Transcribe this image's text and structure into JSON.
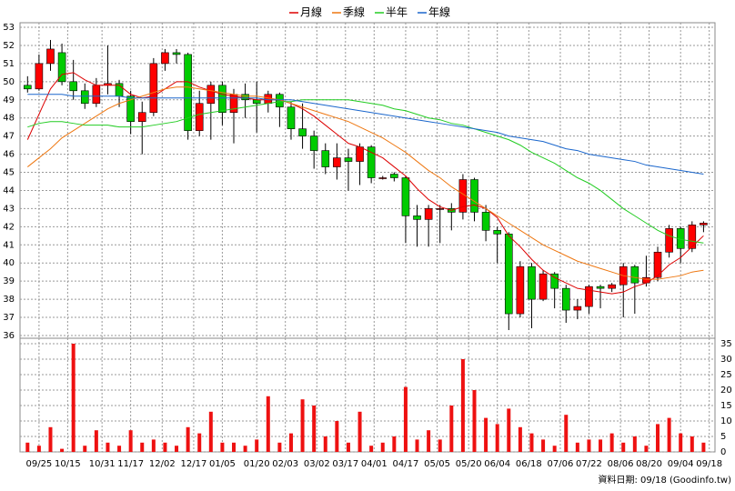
{
  "chart_data": [
    {
      "type": "candlestick",
      "x": [
        2,
        6,
        10,
        14,
        18,
        22,
        26,
        30,
        34,
        38,
        42,
        46,
        50,
        54,
        58,
        62,
        66,
        70,
        74,
        78,
        82,
        86,
        90,
        94,
        98,
        102,
        106,
        110,
        114,
        118,
        122,
        126,
        130,
        134,
        138,
        142,
        146,
        150,
        154,
        158,
        162,
        166,
        170,
        174,
        178,
        182,
        186,
        190,
        194,
        198,
        202,
        206,
        210,
        214,
        218,
        222,
        226,
        230,
        234,
        238
      ],
      "open": [
        49.8,
        49.6,
        51.0,
        51.6,
        50.0,
        49.5,
        48.8,
        49.8,
        49.9,
        49.2,
        47.8,
        48.3,
        51.0,
        51.6,
        51.5,
        47.3,
        48.8,
        49.8,
        48.3,
        49.3,
        49.0,
        48.8,
        49.3,
        48.6,
        47.4,
        47.0,
        46.2,
        45.3,
        45.8,
        45.6,
        46.4,
        44.7,
        44.9,
        44.7,
        42.6,
        42.4,
        43.0,
        43.0,
        42.8,
        44.6,
        42.8,
        41.8,
        41.6,
        37.2,
        39.8,
        38.0,
        39.4,
        38.6,
        37.4,
        37.6,
        38.7,
        38.6,
        38.8,
        39.8,
        38.9,
        39.2,
        40.6,
        41.9,
        40.8,
        42.1
      ],
      "high": [
        50.3,
        51.5,
        52.3,
        52.1,
        51.2,
        49.9,
        50.2,
        52.0,
        50.1,
        49.5,
        48.9,
        51.3,
        51.8,
        51.8,
        51.6,
        49.5,
        50.0,
        50.0,
        49.6,
        49.9,
        50.0,
        49.5,
        49.4,
        48.9,
        48.8,
        47.3,
        46.6,
        46.6,
        46.3,
        46.6,
        46.5,
        44.8,
        45.0,
        44.8,
        43.2,
        43.2,
        43.2,
        43.3,
        44.9,
        44.7,
        43.2,
        42.0,
        41.7,
        40.1,
        40.0,
        39.6,
        39.5,
        38.8,
        38.0,
        38.8,
        38.8,
        38.9,
        40.0,
        39.9,
        40.4,
        40.9,
        42.1,
        42.0,
        42.3,
        42.3
      ],
      "low": [
        49.4,
        49.5,
        50.6,
        49.8,
        49.0,
        48.5,
        48.6,
        49.3,
        48.6,
        47.1,
        46.0,
        48.1,
        50.6,
        51.0,
        46.8,
        47.0,
        46.8,
        47.6,
        46.6,
        48.0,
        47.2,
        48.3,
        47.5,
        46.8,
        46.3,
        45.2,
        44.9,
        44.6,
        44.0,
        44.3,
        44.4,
        44.6,
        44.5,
        41.1,
        40.9,
        40.9,
        41.1,
        41.8,
        42.4,
        42.3,
        41.2,
        40.0,
        36.3,
        37.0,
        36.4,
        37.9,
        37.5,
        36.7,
        36.9,
        37.2,
        37.5,
        38.4,
        37.0,
        37.2,
        38.7,
        39.0,
        40.3,
        40.0,
        40.6,
        41.7
      ],
      "close": [
        49.6,
        51.0,
        51.8,
        50.0,
        49.5,
        48.8,
        49.8,
        49.9,
        49.2,
        47.8,
        48.3,
        51.0,
        51.6,
        51.5,
        47.3,
        48.8,
        49.8,
        48.3,
        49.3,
        49.0,
        48.8,
        49.3,
        48.6,
        47.4,
        47.0,
        46.2,
        45.3,
        45.8,
        45.6,
        46.4,
        44.7,
        44.7,
        44.7,
        42.6,
        42.4,
        43.0,
        43.0,
        42.8,
        44.6,
        42.8,
        41.8,
        41.6,
        37.2,
        39.8,
        38.0,
        39.4,
        38.6,
        37.4,
        37.6,
        38.7,
        38.6,
        38.8,
        39.8,
        38.9,
        39.2,
        40.6,
        41.9,
        40.8,
        42.1,
        42.2
      ],
      "up_color": "#ff0000",
      "down_color": "#00cc00",
      "series": [
        {
          "name": "月線",
          "color": "#dd0000",
          "values": [
            46.8,
            48.2,
            49.6,
            50.4,
            50.5,
            50.1,
            49.8,
            49.8,
            49.8,
            49.3,
            49.1,
            49.2,
            49.6,
            50.0,
            50.0,
            49.7,
            49.5,
            49.3,
            49.2,
            49.1,
            49.0,
            49.0,
            49.0,
            48.8,
            48.5,
            48.1,
            47.6,
            47.1,
            46.6,
            46.4,
            46.1,
            45.8,
            45.3,
            44.8,
            44.1,
            43.5,
            43.1,
            42.9,
            43.1,
            43.2,
            43.0,
            42.5,
            41.5,
            40.9,
            40.2,
            39.6,
            39.2,
            38.9,
            38.6,
            38.5,
            38.4,
            38.3,
            38.4,
            38.7,
            38.9,
            39.3,
            39.9,
            40.3,
            40.9,
            41.5
          ]
        },
        {
          "name": "季線",
          "color": "#ee7711",
          "values": [
            45.3,
            45.8,
            46.3,
            46.9,
            47.3,
            47.7,
            48.1,
            48.5,
            48.8,
            49.0,
            49.2,
            49.4,
            49.6,
            49.7,
            49.7,
            49.6,
            49.5,
            49.4,
            49.3,
            49.2,
            49.2,
            49.1,
            49.0,
            48.8,
            48.6,
            48.4,
            48.2,
            48.0,
            47.8,
            47.5,
            47.2,
            46.9,
            46.5,
            46.1,
            45.6,
            45.1,
            44.7,
            44.2,
            43.8,
            43.4,
            43.0,
            42.6,
            42.2,
            41.8,
            41.4,
            41.0,
            40.7,
            40.4,
            40.1,
            39.9,
            39.7,
            39.5,
            39.3,
            39.2,
            39.1,
            39.1,
            39.2,
            39.3,
            39.5,
            39.6
          ]
        },
        {
          "name": "半年",
          "color": "#22cc22",
          "values": [
            47.5,
            47.7,
            47.8,
            47.8,
            47.7,
            47.6,
            47.6,
            47.6,
            47.5,
            47.5,
            47.5,
            47.6,
            47.7,
            47.8,
            48.0,
            48.2,
            48.3,
            48.4,
            48.5,
            48.6,
            48.7,
            48.8,
            48.9,
            48.9,
            49.0,
            49.0,
            49.0,
            49.0,
            49.0,
            48.9,
            48.8,
            48.7,
            48.5,
            48.4,
            48.2,
            48.0,
            47.9,
            47.7,
            47.6,
            47.4,
            47.2,
            47.0,
            46.8,
            46.5,
            46.1,
            45.8,
            45.5,
            45.1,
            44.7,
            44.4,
            44.0,
            43.5,
            43.0,
            42.6,
            42.2,
            41.8,
            41.5,
            41.3,
            41.2,
            41.1
          ]
        },
        {
          "name": "年線",
          "color": "#1a66cc",
          "values": [
            49.3,
            49.3,
            49.3,
            49.3,
            49.2,
            49.2,
            49.2,
            49.2,
            49.2,
            49.1,
            49.1,
            49.1,
            49.1,
            49.1,
            49.1,
            49.1,
            49.1,
            49.1,
            49.1,
            49.1,
            49.1,
            49.0,
            49.0,
            49.0,
            48.9,
            48.8,
            48.7,
            48.6,
            48.5,
            48.4,
            48.3,
            48.2,
            48.1,
            48.0,
            47.9,
            47.8,
            47.7,
            47.6,
            47.5,
            47.4,
            47.3,
            47.2,
            47.0,
            46.9,
            46.8,
            46.7,
            46.5,
            46.3,
            46.2,
            46.0,
            45.9,
            45.8,
            45.7,
            45.6,
            45.4,
            45.3,
            45.2,
            45.1,
            45.0,
            44.9
          ]
        }
      ],
      "xlim": [
        0,
        242
      ],
      "ylim": [
        36,
        53
      ],
      "yticks": [
        36,
        37,
        38,
        39,
        40,
        41,
        42,
        43,
        44,
        45,
        46,
        47,
        48,
        49,
        50,
        51,
        52,
        53
      ],
      "grid": true
    },
    {
      "type": "bar",
      "x": [
        2,
        6,
        10,
        14,
        18,
        22,
        26,
        30,
        34,
        38,
        42,
        46,
        50,
        54,
        58,
        62,
        66,
        70,
        74,
        78,
        82,
        86,
        90,
        94,
        98,
        102,
        106,
        110,
        114,
        118,
        122,
        126,
        130,
        134,
        138,
        142,
        146,
        150,
        154,
        158,
        162,
        166,
        170,
        174,
        178,
        182,
        186,
        190,
        194,
        198,
        202,
        206,
        210,
        214,
        218,
        222,
        226,
        230,
        234,
        238
      ],
      "values": [
        3,
        2,
        8,
        1,
        35,
        2,
        7,
        3,
        2,
        7,
        3,
        4,
        3,
        2,
        8,
        6,
        13,
        3,
        3,
        2,
        4,
        18,
        3,
        6,
        17,
        15,
        5,
        10,
        3,
        13,
        2,
        3,
        5,
        21,
        4,
        7,
        4,
        15,
        30,
        20,
        11,
        9,
        14,
        8,
        6,
        4,
        2,
        12,
        3,
        4,
        4,
        6,
        3,
        5,
        2,
        9,
        11,
        6,
        5,
        3
      ],
      "color": "#ee1111",
      "xlim": [
        0,
        242
      ],
      "ylim": [
        0,
        35
      ],
      "yticks": [
        0,
        5,
        10,
        15,
        20,
        25,
        30,
        35
      ],
      "xticks": [
        {
          "value": 6,
          "label": "09/25"
        },
        {
          "value": 16,
          "label": "10/15"
        },
        {
          "value": 28,
          "label": "10/31"
        },
        {
          "value": 38,
          "label": "11/17"
        },
        {
          "value": 49,
          "label": "12/02"
        },
        {
          "value": 60,
          "label": "12/17"
        },
        {
          "value": 70,
          "label": "01/05"
        },
        {
          "value": 82,
          "label": "01/20"
        },
        {
          "value": 92,
          "label": "02/03"
        },
        {
          "value": 103,
          "label": "03/02"
        },
        {
          "value": 113,
          "label": "03/17"
        },
        {
          "value": 123,
          "label": "04/01"
        },
        {
          "value": 134,
          "label": "04/17"
        },
        {
          "value": 145,
          "label": "05/05"
        },
        {
          "value": 156,
          "label": "05/20"
        },
        {
          "value": 166,
          "label": "06/04"
        },
        {
          "value": 177,
          "label": "06/18"
        },
        {
          "value": 188,
          "label": "07/06"
        },
        {
          "value": 198,
          "label": "07/22"
        },
        {
          "value": 209,
          "label": "08/06"
        },
        {
          "value": 219,
          "label": "08/20"
        },
        {
          "value": 230,
          "label": "09/04"
        },
        {
          "value": 240,
          "label": "09/18"
        }
      ],
      "annotation": "資料日期: 09/18 (Goodinfo.tw)",
      "grid": true
    }
  ]
}
